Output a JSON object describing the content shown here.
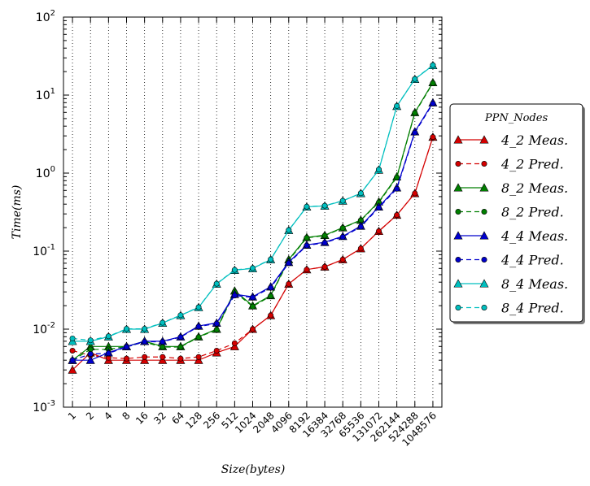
{
  "chart_data": {
    "type": "line",
    "title": "",
    "xlabel": "Size(bytes)",
    "ylabel": "Time(ms)",
    "y_scale": "log",
    "ylim": [
      0.001,
      100
    ],
    "y_ticks": [
      {
        "base": "10",
        "exp": "-3"
      },
      {
        "base": "10",
        "exp": "-2"
      },
      {
        "base": "10",
        "exp": "-1"
      },
      {
        "base": "10",
        "exp": "0"
      },
      {
        "base": "10",
        "exp": "1"
      },
      {
        "base": "10",
        "exp": "2"
      }
    ],
    "categories": [
      "1",
      "2",
      "4",
      "8",
      "16",
      "32",
      "64",
      "128",
      "256",
      "512",
      "1024",
      "2048",
      "4096",
      "8192",
      "16384",
      "32768",
      "65536",
      "131072",
      "262144",
      "524288",
      "1048576"
    ],
    "grid": "vertical dotted",
    "legend": {
      "title": "PPN_Nodes",
      "placement": "right, outside plot"
    },
    "series": [
      {
        "name": "4_2 Meas.",
        "color": "#d40000",
        "style": "solid",
        "marker": "triangle",
        "values": [
          0.003,
          0.005,
          0.004,
          0.004,
          0.004,
          0.004,
          0.004,
          0.004,
          0.005,
          0.006,
          0.01,
          0.015,
          0.038,
          0.058,
          0.063,
          0.078,
          0.108,
          0.18,
          0.29,
          0.55,
          2.9
        ]
      },
      {
        "name": "4_2 Pred.",
        "color": "#d40000",
        "style": "dashed",
        "marker": "circle",
        "values": [
          0.0053,
          0.0046,
          0.0043,
          0.0042,
          0.0044,
          0.0044,
          0.0042,
          0.0044,
          0.0053,
          0.0066,
          0.01,
          0.015,
          0.038,
          0.058,
          0.063,
          0.078,
          0.108,
          0.18,
          0.29,
          0.55,
          2.9
        ]
      },
      {
        "name": "8_2 Meas.",
        "color": "#007f00",
        "style": "solid",
        "marker": "triangle",
        "values": [
          0.004,
          0.006,
          0.006,
          0.006,
          0.007,
          0.006,
          0.006,
          0.008,
          0.01,
          0.031,
          0.02,
          0.027,
          0.078,
          0.15,
          0.16,
          0.2,
          0.25,
          0.43,
          0.9,
          6.0,
          14.5
        ]
      },
      {
        "name": "8_2 Pred.",
        "color": "#007f00",
        "style": "dashed",
        "marker": "circle",
        "values": [
          0.004,
          0.0055,
          0.0055,
          0.006,
          0.0068,
          0.0059,
          0.0059,
          0.0079,
          0.0098,
          0.03,
          0.0195,
          0.0265,
          0.076,
          0.148,
          0.158,
          0.198,
          0.248,
          0.42,
          0.88,
          5.9,
          14.2
        ]
      },
      {
        "name": "4_4 Meas.",
        "color": "#0000cc",
        "style": "solid",
        "marker": "triangle",
        "values": [
          0.004,
          0.004,
          0.005,
          0.006,
          0.007,
          0.007,
          0.008,
          0.011,
          0.012,
          0.028,
          0.026,
          0.035,
          0.072,
          0.12,
          0.13,
          0.155,
          0.21,
          0.37,
          0.65,
          3.4,
          8.0
        ]
      },
      {
        "name": "4_4 Pred.",
        "color": "#0000cc",
        "style": "dashed",
        "marker": "circle",
        "values": [
          0.004,
          0.0048,
          0.0049,
          0.0059,
          0.0069,
          0.0069,
          0.0079,
          0.0108,
          0.0118,
          0.027,
          0.0255,
          0.034,
          0.07,
          0.118,
          0.128,
          0.152,
          0.205,
          0.36,
          0.63,
          3.3,
          7.8
        ]
      },
      {
        "name": "8_4 Meas.",
        "color": "#00bfbf",
        "style": "solid",
        "marker": "triangle",
        "values": [
          0.007,
          0.007,
          0.008,
          0.01,
          0.01,
          0.012,
          0.015,
          0.019,
          0.038,
          0.057,
          0.06,
          0.078,
          0.185,
          0.37,
          0.38,
          0.44,
          0.55,
          1.1,
          7.2,
          16.0,
          24.0
        ]
      },
      {
        "name": "8_4 Pred.",
        "color": "#00bfbf",
        "style": "dashed",
        "marker": "circle",
        "values": [
          0.0076,
          0.0072,
          0.0081,
          0.0101,
          0.0101,
          0.0121,
          0.0151,
          0.0191,
          0.0382,
          0.0575,
          0.0605,
          0.0785,
          0.186,
          0.372,
          0.382,
          0.442,
          0.552,
          1.11,
          7.25,
          16.1,
          24.2
        ]
      }
    ]
  }
}
